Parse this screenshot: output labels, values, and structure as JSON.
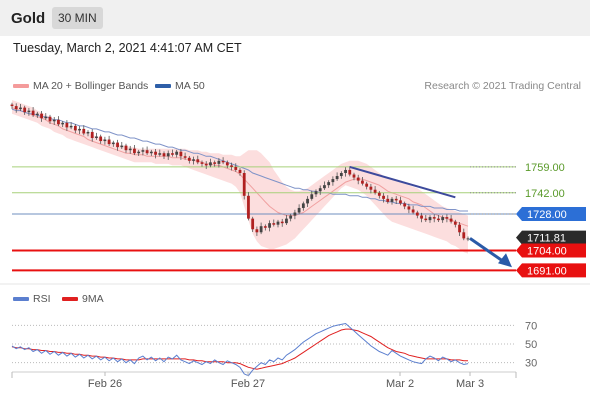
{
  "header": {
    "title": "Gold",
    "interval": "30 MIN"
  },
  "datetime": "Tuesday, March 2, 2021 4:41:07 AM CET",
  "copyright": "Research © 2021 Trading Central",
  "colors": {
    "bollinger": "#f08080",
    "ma50": "#2e5fa8",
    "rsi": "#5b7fcf",
    "ma9": "#e02020",
    "support": "#e81010",
    "resistance": "#9acd6a",
    "pivot": "#6f8fbf"
  },
  "chart_data": [
    {
      "type": "candlestick",
      "legend": [
        {
          "name": "MA 20 + Bollinger Bands",
          "color": "#f08080"
        },
        {
          "name": "MA 50",
          "color": "#2e5fa8"
        }
      ],
      "x_ticks": [
        "Feb 26",
        "Feb 27",
        "Mar 2",
        "Mar 3"
      ],
      "ylim": [
        1682,
        1803
      ],
      "levels": [
        {
          "value": 1759.0,
          "label": "1759.00",
          "style": "resistance"
        },
        {
          "value": 1742.0,
          "label": "1742.00",
          "style": "resistance"
        },
        {
          "value": 1728.0,
          "label": "1728.00",
          "style": "pivot"
        },
        {
          "value": 1711.81,
          "label": "1711.81",
          "style": "last"
        },
        {
          "value": 1704.0,
          "label": "1704.00",
          "style": "support"
        },
        {
          "value": 1691.0,
          "label": "1691.00",
          "style": "support"
        }
      ],
      "close": [
        1799,
        1797,
        1798,
        1795,
        1796,
        1793,
        1794,
        1791,
        1792,
        1789,
        1790,
        1787,
        1788,
        1785,
        1786,
        1783,
        1784,
        1781,
        1782,
        1778,
        1779,
        1776,
        1777,
        1774,
        1775,
        1772,
        1773,
        1770,
        1771,
        1768,
        1769,
        1770,
        1768,
        1769,
        1767,
        1768,
        1766,
        1768,
        1767,
        1769,
        1766,
        1765,
        1763,
        1764,
        1762,
        1761,
        1760,
        1762,
        1761,
        1763,
        1762,
        1760,
        1759,
        1757,
        1755,
        1740,
        1725,
        1718,
        1716,
        1720,
        1719,
        1722,
        1721,
        1723,
        1722,
        1725,
        1727,
        1729,
        1732,
        1735,
        1738,
        1741,
        1743,
        1745,
        1747,
        1749,
        1751,
        1753,
        1755,
        1757,
        1754,
        1752,
        1750,
        1748,
        1746,
        1744,
        1742,
        1740,
        1738,
        1736,
        1738,
        1737,
        1735,
        1733,
        1731,
        1729,
        1727,
        1725,
        1724,
        1726,
        1725,
        1724,
        1726,
        1725,
        1723,
        1721,
        1716,
        1712,
        1712
      ],
      "bb_upper": [
        1803,
        1802,
        1801,
        1800,
        1799,
        1798,
        1796,
        1795,
        1793,
        1792,
        1790,
        1789,
        1788,
        1786,
        1785,
        1784,
        1783,
        1782,
        1781,
        1780,
        1779,
        1778,
        1777,
        1776,
        1775,
        1774,
        1773,
        1773,
        1772,
        1772,
        1771,
        1771,
        1771,
        1771,
        1771,
        1771,
        1771,
        1771,
        1771,
        1771,
        1771,
        1771,
        1770,
        1770,
        1770,
        1769,
        1769,
        1768,
        1768,
        1768,
        1767,
        1767,
        1767,
        1766,
        1766,
        1768,
        1770,
        1770,
        1770,
        1768,
        1765,
        1762,
        1757,
        1753,
        1749,
        1746,
        1744,
        1743,
        1743,
        1744,
        1745,
        1747,
        1749,
        1751,
        1753,
        1755,
        1757,
        1759,
        1761,
        1762,
        1763,
        1763,
        1763,
        1762,
        1761,
        1759,
        1757,
        1755,
        1753,
        1752,
        1751,
        1750,
        1749,
        1748,
        1747,
        1746,
        1745,
        1743,
        1741,
        1739,
        1737,
        1735,
        1733,
        1732,
        1731,
        1730,
        1729,
        1728,
        1727
      ],
      "bb_lower": [
        1794,
        1793,
        1792,
        1791,
        1790,
        1789,
        1788,
        1786,
        1785,
        1784,
        1782,
        1781,
        1780,
        1778,
        1777,
        1776,
        1775,
        1774,
        1773,
        1772,
        1771,
        1770,
        1769,
        1768,
        1767,
        1766,
        1765,
        1764,
        1763,
        1762,
        1762,
        1762,
        1762,
        1762,
        1761,
        1761,
        1761,
        1761,
        1760,
        1760,
        1760,
        1759,
        1758,
        1757,
        1756,
        1755,
        1754,
        1753,
        1752,
        1751,
        1750,
        1749,
        1748,
        1746,
        1742,
        1733,
        1724,
        1715,
        1710,
        1707,
        1706,
        1705,
        1705,
        1706,
        1707,
        1708,
        1710,
        1712,
        1715,
        1718,
        1721,
        1724,
        1727,
        1730,
        1733,
        1736,
        1739,
        1742,
        1745,
        1747,
        1746,
        1745,
        1744,
        1742,
        1740,
        1737,
        1734,
        1731,
        1728,
        1725,
        1723,
        1722,
        1721,
        1720,
        1719,
        1718,
        1717,
        1716,
        1715,
        1714,
        1713,
        1712,
        1711,
        1710,
        1708,
        1707,
        1705,
        1703,
        1702
      ],
      "ma20": [
        1798,
        1797,
        1796,
        1795,
        1794,
        1793,
        1792,
        1791,
        1790,
        1788,
        1787,
        1786,
        1784,
        1783,
        1782,
        1781,
        1780,
        1779,
        1777,
        1776,
        1775,
        1774,
        1773,
        1772,
        1771,
        1770,
        1769,
        1768,
        1768,
        1767,
        1767,
        1767,
        1766,
        1766,
        1766,
        1766,
        1766,
        1766,
        1765,
        1765,
        1765,
        1764,
        1764,
        1763,
        1763,
        1762,
        1761,
        1761,
        1760,
        1760,
        1759,
        1758,
        1757,
        1756,
        1754,
        1751,
        1748,
        1745,
        1742,
        1739,
        1736,
        1733,
        1731,
        1729,
        1728,
        1727,
        1727,
        1727,
        1728,
        1729,
        1731,
        1733,
        1735,
        1737,
        1739,
        1741,
        1743,
        1745,
        1747,
        1749,
        1750,
        1751,
        1751,
        1751,
        1750,
        1749,
        1748,
        1747,
        1745,
        1743,
        1742,
        1741,
        1740,
        1739,
        1738,
        1736,
        1735,
        1734,
        1732,
        1730,
        1728,
        1727,
        1726,
        1725,
        1724,
        1723,
        1722,
        1721,
        1720
      ],
      "ma50": [
        1797,
        1796,
        1796,
        1795,
        1794,
        1794,
        1793,
        1792,
        1792,
        1791,
        1790,
        1790,
        1789,
        1788,
        1788,
        1787,
        1786,
        1786,
        1785,
        1784,
        1784,
        1783,
        1782,
        1782,
        1781,
        1780,
        1780,
        1779,
        1778,
        1778,
        1777,
        1776,
        1776,
        1775,
        1774,
        1774,
        1773,
        1772,
        1772,
        1771,
        1770,
        1770,
        1769,
        1768,
        1768,
        1767,
        1766,
        1766,
        1765,
        1764,
        1763,
        1762,
        1761,
        1760,
        1759,
        1758,
        1757,
        1755,
        1754,
        1753,
        1752,
        1751,
        1750,
        1749,
        1748,
        1747,
        1746,
        1745,
        1745,
        1744,
        1744,
        1743,
        1743,
        1742,
        1742,
        1742,
        1741,
        1741,
        1741,
        1741,
        1740,
        1740,
        1740,
        1739,
        1739,
        1738,
        1738,
        1737,
        1737,
        1736,
        1736,
        1735,
        1735,
        1735,
        1734,
        1734,
        1734,
        1733,
        1733,
        1733,
        1732,
        1732,
        1732,
        1731,
        1731,
        1731,
        1730,
        1730,
        1730
      ],
      "trendline": {
        "from": [
          1759,
          1759
        ],
        "to_value": 1742
      },
      "forecast_arrow": {
        "from_value": 1712,
        "to_value": 1693
      }
    },
    {
      "type": "line",
      "legend": [
        {
          "name": "RSI",
          "color": "#5b7fcf"
        },
        {
          "name": "9MA",
          "color": "#e02020"
        }
      ],
      "ylim": [
        20,
        80
      ],
      "y_ticks": [
        "70",
        "50",
        "30"
      ],
      "levels": [
        70,
        50,
        30
      ],
      "rsi": [
        48,
        45,
        47,
        44,
        46,
        42,
        44,
        40,
        43,
        39,
        42,
        38,
        41,
        37,
        40,
        36,
        39,
        35,
        38,
        34,
        37,
        33,
        36,
        32,
        35,
        31,
        34,
        30,
        33,
        29,
        35,
        37,
        33,
        36,
        32,
        35,
        31,
        36,
        34,
        38,
        33,
        31,
        29,
        32,
        30,
        28,
        31,
        29,
        33,
        30,
        28,
        32,
        30,
        28,
        25,
        18,
        16,
        22,
        26,
        30,
        28,
        33,
        31,
        35,
        33,
        38,
        41,
        44,
        48,
        52,
        55,
        58,
        61,
        63,
        65,
        67,
        69,
        70,
        71,
        72,
        68,
        64,
        60,
        56,
        52,
        48,
        45,
        42,
        40,
        38,
        43,
        40,
        37,
        35,
        33,
        31,
        30,
        29,
        34,
        37,
        35,
        32,
        36,
        34,
        31,
        33,
        30,
        28,
        29
      ],
      "ma9": [
        47,
        46,
        46,
        45,
        45,
        44,
        44,
        43,
        43,
        42,
        42,
        41,
        41,
        40,
        40,
        39,
        39,
        38,
        38,
        37,
        37,
        36,
        36,
        35,
        35,
        34,
        34,
        33,
        33,
        33,
        33,
        34,
        34,
        34,
        34,
        34,
        34,
        34,
        34,
        34,
        34,
        34,
        33,
        33,
        32,
        32,
        31,
        31,
        31,
        31,
        31,
        30,
        30,
        30,
        29,
        27,
        25,
        24,
        23,
        24,
        25,
        26,
        27,
        28,
        29,
        31,
        33,
        35,
        38,
        41,
        44,
        47,
        50,
        53,
        56,
        59,
        61,
        63,
        65,
        66,
        66,
        65,
        64,
        62,
        60,
        58,
        55,
        52,
        49,
        46,
        44,
        42,
        41,
        40,
        38,
        37,
        36,
        35,
        34,
        34,
        34,
        34,
        34,
        34,
        33,
        33,
        33,
        32,
        32
      ]
    }
  ]
}
